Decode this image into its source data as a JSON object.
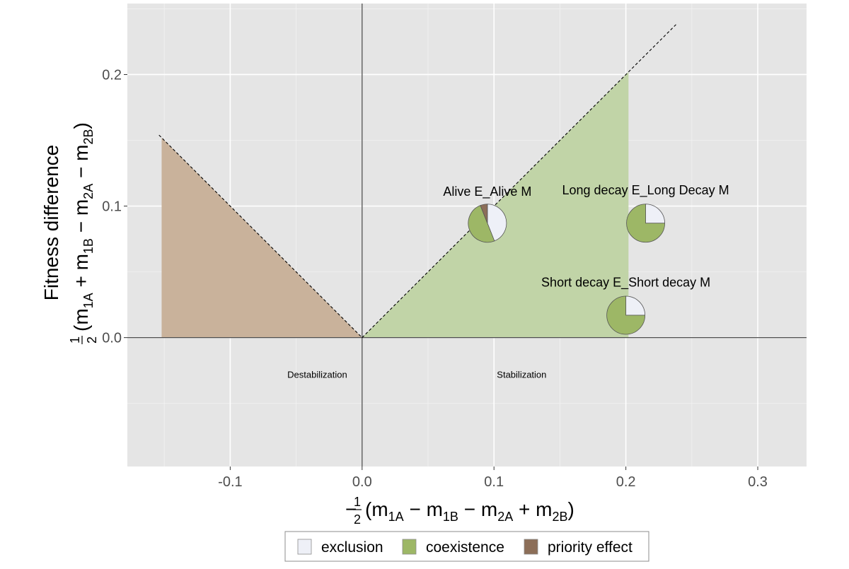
{
  "chart_data": {
    "type": "scatter",
    "subtype": "pie-markers-on-coexistence-plane",
    "xlabel": {
      "prefix": "−",
      "frac_num": "1",
      "frac_den": "2",
      "expr": [
        "(m",
        "1A",
        " − m",
        "1B",
        " − m",
        "2A",
        " + m",
        "2B",
        ")"
      ]
    },
    "ylabel": {
      "title": "Fitness difference",
      "frac_num": "1",
      "frac_den": "2",
      "expr": [
        "(m",
        "1A",
        " + m",
        "1B",
        " − m",
        "2A",
        " − m",
        "2B",
        ")"
      ]
    },
    "xlim": [
      -0.178,
      0.337
    ],
    "ylim": [
      -0.098,
      0.254
    ],
    "x_ticks": [
      -0.1,
      0.0,
      0.1,
      0.2,
      0.3
    ],
    "x_tick_labels": [
      "-0.1",
      "0.0",
      "0.1",
      "0.2",
      "0.3"
    ],
    "y_ticks": [
      0.0,
      0.1,
      0.2
    ],
    "y_tick_labels": [
      "0.0",
      "0.1",
      "0.2"
    ],
    "grid": true,
    "background": "#e5e5e5",
    "regions": [
      {
        "name": "priority effect",
        "color": "#c9b29b",
        "polygon": [
          [
            -0.152,
            0.0
          ],
          [
            -0.152,
            0.152
          ],
          [
            0.0,
            0.0
          ]
        ]
      },
      {
        "name": "coexistence",
        "color": "#c1d4a7",
        "polygon": [
          [
            0.0,
            0.0
          ],
          [
            0.202,
            0.202
          ],
          [
            0.202,
            0.0
          ]
        ]
      }
    ],
    "boundary_lines": [
      {
        "from": [
          -0.154,
          0.154
        ],
        "to": [
          0.0,
          0.0
        ]
      },
      {
        "from": [
          0.0,
          0.0
        ],
        "to": [
          0.238,
          0.238
        ]
      }
    ],
    "region_annotations": [
      {
        "text": "Destabilization",
        "x": -0.034,
        "y": -0.028
      },
      {
        "text": "Stabilization",
        "x": 0.121,
        "y": -0.028
      }
    ],
    "points": [
      {
        "label": "Alive E_Alive M",
        "x": 0.095,
        "y": 0.087,
        "label_y": 0.111,
        "fractions": {
          "exclusion": 0.44,
          "coexistence": 0.5,
          "priority effect": 0.06
        }
      },
      {
        "label": "Long decay E_Long Decay M",
        "x": 0.215,
        "y": 0.087,
        "label_y": 0.112,
        "fractions": {
          "exclusion": 0.25,
          "coexistence": 0.75,
          "priority effect": 0.0
        }
      },
      {
        "label": "Short decay E_Short decay M",
        "x": 0.2,
        "y": 0.017,
        "label_y": 0.042,
        "fractions": {
          "exclusion": 0.25,
          "coexistence": 0.75,
          "priority effect": 0.0
        }
      }
    ],
    "legend": {
      "position": "bottom",
      "entries": [
        {
          "name": "exclusion",
          "color": "#eef0f7"
        },
        {
          "name": "coexistence",
          "color": "#9db766"
        },
        {
          "name": "priority effect",
          "color": "#8c6e58"
        }
      ]
    }
  }
}
